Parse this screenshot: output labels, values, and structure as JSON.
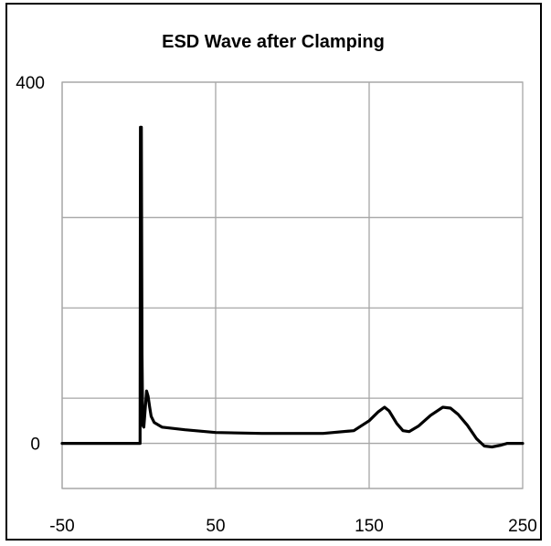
{
  "chart_data": {
    "type": "line",
    "title": "ESD Wave after Clamping",
    "xlabel": "",
    "ylabel": "",
    "xlim": [
      -50,
      250
    ],
    "ylim": [
      -50,
      400
    ],
    "x_tick_labels": [
      "-50",
      "50",
      "150",
      "250"
    ],
    "y_tick_labels": [
      {
        "value": 0,
        "label": "0"
      },
      {
        "value": 400,
        "label": "400"
      }
    ],
    "grid": true,
    "series": [
      {
        "color": "#000000",
        "points": [
          [
            -50,
            0
          ],
          [
            0,
            0
          ],
          [
            0.8,
            0
          ],
          [
            1,
            350
          ],
          [
            1.6,
            350
          ],
          [
            2,
            100
          ],
          [
            2.5,
            20
          ],
          [
            3.2,
            18
          ],
          [
            4,
            35
          ],
          [
            5,
            58
          ],
          [
            6,
            52
          ],
          [
            7,
            40
          ],
          [
            8,
            30
          ],
          [
            10,
            23
          ],
          [
            15,
            18
          ],
          [
            30,
            15
          ],
          [
            50,
            12
          ],
          [
            80,
            11
          ],
          [
            120,
            11
          ],
          [
            140,
            14
          ],
          [
            150,
            25
          ],
          [
            156,
            35
          ],
          [
            160,
            40
          ],
          [
            163,
            36
          ],
          [
            168,
            22
          ],
          [
            172,
            14
          ],
          [
            176,
            13
          ],
          [
            182,
            19
          ],
          [
            190,
            31
          ],
          [
            198,
            40
          ],
          [
            203,
            39
          ],
          [
            208,
            32
          ],
          [
            214,
            20
          ],
          [
            220,
            5
          ],
          [
            225,
            -3
          ],
          [
            230,
            -4
          ],
          [
            236,
            -2
          ],
          [
            240,
            0
          ],
          [
            250,
            0
          ]
        ]
      }
    ]
  }
}
